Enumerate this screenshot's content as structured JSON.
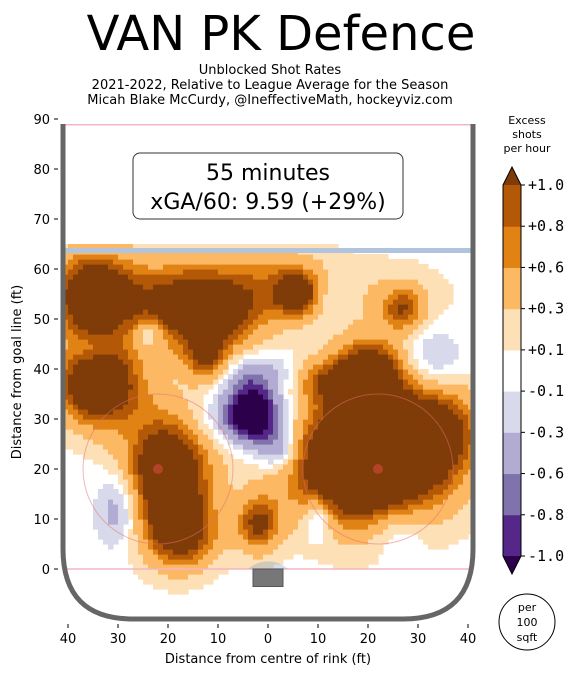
{
  "title": "VAN PK Defence",
  "subtitle_lines": [
    "Unblocked Shot Rates",
    "2021-2022, Relative to League Average for the Season",
    "Micah Blake McCurdy, @IneffectiveMath, hockeyviz.com"
  ],
  "annotation": {
    "line1": "55 minutes",
    "line2": "xGA/60: 9.59 (+29%)"
  },
  "colorbar": {
    "title_lines": [
      "Excess",
      "shots",
      "per hour"
    ],
    "unit_lines": [
      "per",
      "100",
      "sqft"
    ]
  },
  "colors": {
    "dark_brown": "#7f3b08",
    "brown2": "#b35806",
    "orange": "#e08214",
    "light_orange": "#fdb863",
    "peach": "#fee0b6",
    "white": "#ffffff",
    "lavender": "#d8daeb",
    "light_purple": "#b2abd2",
    "purple": "#8073ac",
    "dark_purple": "#542788",
    "deepest_purple": "#2d004b",
    "goal_line": "#f4b6c2",
    "blue_line": "#b0c4de",
    "boards": "#666666"
  },
  "chart_data": {
    "type": "heatmap",
    "title": "VAN PK Defence",
    "xlabel": "Distance from centre of rink (ft)",
    "ylabel": "Distance from goal line (ft)",
    "xlim": [
      -42,
      42
    ],
    "ylim": [
      -11,
      90
    ],
    "x_ticks": [
      -40,
      -30,
      -20,
      -10,
      0,
      10,
      20,
      30,
      40
    ],
    "x_tick_labels": [
      "40",
      "30",
      "20",
      "10",
      "0",
      "10",
      "20",
      "30",
      "40"
    ],
    "y_ticks": [
      0,
      10,
      20,
      30,
      40,
      50,
      60,
      70,
      80,
      90
    ],
    "y_tick_labels": [
      "0",
      "10",
      "20",
      "30",
      "40",
      "50",
      "60",
      "70",
      "80",
      "90"
    ],
    "colorbar_levels": [
      -1.0,
      -0.8,
      -0.6,
      -0.3,
      -0.1,
      0.1,
      0.3,
      0.6,
      0.8,
      1.0
    ],
    "colorbar_labels": [
      "-1.0",
      "-0.8",
      "-0.6",
      "-0.3",
      "-0.1",
      "+0.1",
      "+0.3",
      "+0.6",
      "+0.8",
      "+1.0"
    ],
    "blobs": [
      {
        "x": -35,
        "y": 55,
        "value": 1.5,
        "sx": 6,
        "sy": 6
      },
      {
        "x": -12,
        "y": 52,
        "value": 1.4,
        "sx": 8,
        "sy": 6
      },
      {
        "x": -22,
        "y": 55,
        "value": 0.4,
        "sx": 8,
        "sy": 6
      },
      {
        "x": 3,
        "y": 58,
        "value": 0.5,
        "sx": 7,
        "sy": 5
      },
      {
        "x": 6,
        "y": 55,
        "value": 1.1,
        "sx": 3,
        "sy": 3
      },
      {
        "x": -34,
        "y": 37,
        "value": 1.6,
        "sx": 6,
        "sy": 6
      },
      {
        "x": -12,
        "y": 41,
        "value": 1.0,
        "sx": 3.5,
        "sy": 3.5
      },
      {
        "x": -20,
        "y": 20,
        "value": 1.6,
        "sx": 6,
        "sy": 9
      },
      {
        "x": -17,
        "y": 7,
        "value": 1.0,
        "sx": 5,
        "sy": 5
      },
      {
        "x": -2,
        "y": 9,
        "value": 1.0,
        "sx": 3,
        "sy": 4
      },
      {
        "x": 20,
        "y": 22,
        "value": 2.2,
        "sx": 11,
        "sy": 9
      },
      {
        "x": 34,
        "y": 28,
        "value": 0.9,
        "sx": 6,
        "sy": 6
      },
      {
        "x": 20,
        "y": 39,
        "value": 1.4,
        "sx": 5,
        "sy": 5
      },
      {
        "x": 10,
        "y": 38,
        "value": 0.6,
        "sx": 4,
        "sy": 3
      },
      {
        "x": 27,
        "y": 52,
        "value": 0.8,
        "sx": 3,
        "sy": 3
      },
      {
        "x": 22,
        "y": 55,
        "value": 0.3,
        "sx": 10,
        "sy": 5
      },
      {
        "x": -3,
        "y": 31,
        "value": -1.4,
        "sx": 4,
        "sy": 4
      },
      {
        "x": 2,
        "y": 24,
        "value": -0.8,
        "sx": 3,
        "sy": 3
      },
      {
        "x": -5,
        "y": 39,
        "value": -0.6,
        "sx": 8,
        "sy": 3
      },
      {
        "x": -9,
        "y": 30,
        "value": -0.3,
        "sx": 12,
        "sy": 4
      },
      {
        "x": -24,
        "y": 47,
        "value": -0.5,
        "sx": 2,
        "sy": 2
      },
      {
        "x": -30,
        "y": 12,
        "value": -0.6,
        "sx": 3,
        "sy": 5
      },
      {
        "x": 10,
        "y": 10,
        "value": -0.6,
        "sx": 2,
        "sy": 3
      },
      {
        "x": 33,
        "y": 42,
        "value": -0.4,
        "sx": 4,
        "sy": 4
      },
      {
        "x": 12,
        "y": 55,
        "value": -0.3,
        "sx": 4,
        "sy": 3
      },
      {
        "x": 26,
        "y": 8,
        "value": -0.4,
        "sx": 4,
        "sy": 4
      },
      {
        "x": -35,
        "y": 44,
        "value": -0.3,
        "sx": 3,
        "sy": 2
      }
    ]
  }
}
